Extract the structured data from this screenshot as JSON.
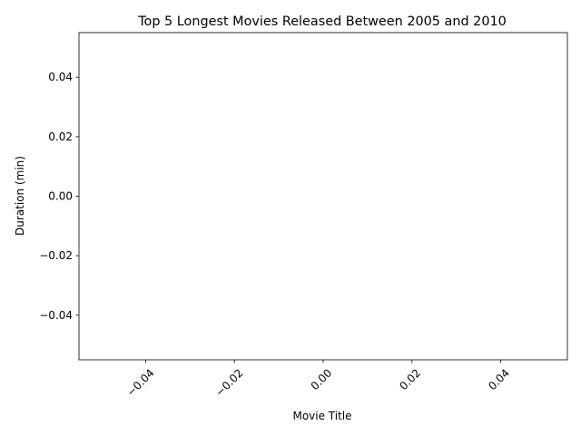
{
  "chart_data": {
    "type": "bar",
    "title": "Top 5 Longest Movies Released Between 2005 and 2010",
    "xlabel": "Movie Title",
    "ylabel": "Duration (min)",
    "categories": [],
    "values": [],
    "xlim": [
      -0.055,
      0.055
    ],
    "ylim": [
      -0.055,
      0.055
    ],
    "xticks": [
      {
        "value": -0.04,
        "label": "−0.04"
      },
      {
        "value": -0.02,
        "label": "−0.02"
      },
      {
        "value": 0.0,
        "label": "0.00"
      },
      {
        "value": 0.02,
        "label": "0.02"
      },
      {
        "value": 0.04,
        "label": "0.04"
      }
    ],
    "yticks": [
      {
        "value": -0.04,
        "label": "−0.04"
      },
      {
        "value": -0.02,
        "label": "−0.02"
      },
      {
        "value": 0.0,
        "label": "0.00"
      },
      {
        "value": 0.02,
        "label": "0.02"
      },
      {
        "value": 0.04,
        "label": "0.04"
      }
    ],
    "x_tick_rotation": 45,
    "grid": false,
    "legend": "none",
    "colors": {
      "axes": "#000000",
      "background": "#ffffff"
    }
  }
}
